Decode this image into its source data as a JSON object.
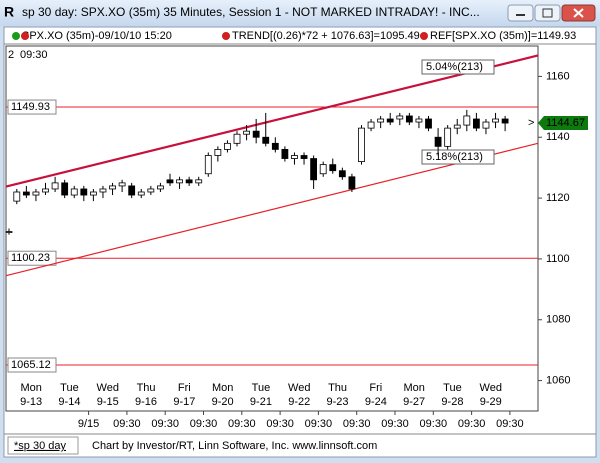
{
  "window": {
    "title": "sp 30 day: SPX.XO (35m) 35 Minutes, Session 1 - NOT MARKED INTRADAY! - INC...",
    "footer_tab": "*sp 30 day",
    "footer_credit": "Chart by Investor/RT, Linn Software, Inc. www.linnsoft.com"
  },
  "chart_data": {
    "type": "candlestick",
    "legend": [
      "SPX.XO (35m)-09/10/10 15:20",
      "TREND[(0.26)*72 + 1076.63]=1095.49",
      "REF[SPX.XO (35m)]=1149.93"
    ],
    "corner_labels": [
      "2",
      "09:30"
    ],
    "days": [
      {
        "weekday": "Mon",
        "date": "9-13"
      },
      {
        "weekday": "Tue",
        "date": "9-14"
      },
      {
        "weekday": "Wed",
        "date": "9-15"
      },
      {
        "weekday": "Thu",
        "date": "9-16"
      },
      {
        "weekday": "Fri",
        "date": "9-17"
      },
      {
        "weekday": "Mon",
        "date": "9-20"
      },
      {
        "weekday": "Tue",
        "date": "9-21"
      },
      {
        "weekday": "Wed",
        "date": "9-22"
      },
      {
        "weekday": "Thu",
        "date": "9-23"
      },
      {
        "weekday": "Fri",
        "date": "9-24"
      },
      {
        "weekday": "Mon",
        "date": "9-27"
      },
      {
        "weekday": "Tue",
        "date": "9-28"
      },
      {
        "weekday": "Wed",
        "date": "9-29"
      }
    ],
    "time_labels": [
      "9/15",
      "09:30",
      "09:30",
      "09:30",
      "09:30",
      "09:30",
      "09:30",
      "09:30",
      "09:30",
      "09:30",
      "09:30",
      "09:30"
    ],
    "open": [
      1109,
      1119,
      1122,
      1121,
      1122,
      1123,
      1125,
      1121,
      1123,
      1121,
      1122,
      1123,
      1124,
      1124,
      1121,
      1122,
      1123,
      1126,
      1125,
      1126,
      1125,
      1128,
      1134,
      1136,
      1138,
      1141,
      1142,
      1140,
      1138,
      1136,
      1133,
      1134,
      1133,
      1128,
      1131,
      1129,
      1127,
      1132,
      1143,
      1145,
      1146,
      1146,
      1147,
      1145,
      1146,
      1140,
      1137,
      1143,
      1144,
      1146,
      1143,
      1145,
      1146
    ],
    "high": [
      1110,
      1123,
      1124,
      1123,
      1125,
      1127,
      1126,
      1124,
      1124,
      1123,
      1124,
      1125,
      1126,
      1125,
      1123,
      1124,
      1125,
      1128,
      1127,
      1127,
      1127,
      1135,
      1137,
      1139,
      1142,
      1144,
      1146,
      1148,
      1140,
      1137,
      1135,
      1135,
      1134,
      1132,
      1133,
      1130,
      1128,
      1144,
      1146,
      1147,
      1148,
      1148,
      1148,
      1147,
      1147,
      1143,
      1144,
      1146,
      1149,
      1148,
      1146,
      1148,
      1147
    ],
    "low": [
      1108,
      1118,
      1120,
      1119,
      1121,
      1122,
      1120,
      1120,
      1119,
      1119,
      1120,
      1121,
      1122,
      1120,
      1120,
      1121,
      1122,
      1124,
      1123,
      1124,
      1124,
      1127,
      1132,
      1135,
      1137,
      1139,
      1138,
      1137,
      1135,
      1132,
      1131,
      1131,
      1123,
      1127,
      1128,
      1126,
      1122,
      1131,
      1142,
      1143,
      1144,
      1144,
      1144,
      1143,
      1142,
      1134,
      1136,
      1141,
      1142,
      1142,
      1141,
      1143,
      1142
    ],
    "close": [
      1109,
      1122,
      1121,
      1122,
      1123,
      1125,
      1121,
      1123,
      1121,
      1122,
      1123,
      1124,
      1125,
      1121,
      1122,
      1123,
      1124,
      1125,
      1126,
      1125,
      1126,
      1134,
      1136,
      1138,
      1141,
      1142,
      1140,
      1138,
      1136,
      1133,
      1134,
      1133,
      1126,
      1131,
      1129,
      1127,
      1123,
      1143,
      1145,
      1146,
      1145,
      1147,
      1145,
      1146,
      1143,
      1137,
      1143,
      1144,
      1147,
      1143,
      1145,
      1146,
      1144.67
    ],
    "last_price": 1144.67,
    "ref_lines": [
      1149.93,
      1100.23,
      1065.12
    ],
    "trendlines": [
      {
        "color": "#c8103c",
        "start": 1123.8,
        "end": 1166.9,
        "label": "5.04%(213)"
      },
      {
        "color": "#e8202a",
        "start": 1094.5,
        "end": 1138.0,
        "label": "5.18%(213)"
      }
    ],
    "ylim": [
      1050,
      1170
    ],
    "yticks": [
      1060,
      1080,
      1100,
      1120,
      1140,
      1160
    ]
  }
}
